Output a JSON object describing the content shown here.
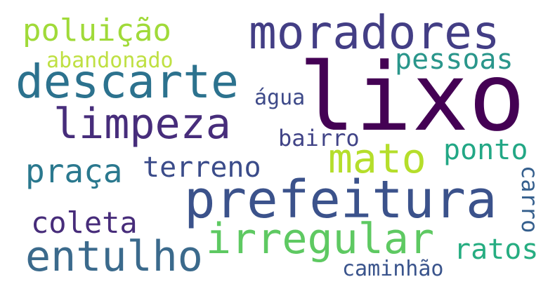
{
  "words": [
    {
      "id": "lixo",
      "text": "lixo",
      "color": "#440154"
    },
    {
      "id": "moradores",
      "text": "moradores",
      "color": "#433e85"
    },
    {
      "id": "descarte",
      "text": "descarte",
      "color": "#2c728e"
    },
    {
      "id": "limpeza",
      "text": "limpeza",
      "color": "#472d7b"
    },
    {
      "id": "prefeitura",
      "text": "prefeitura",
      "color": "#3b528b"
    },
    {
      "id": "poluicao",
      "text": "poluição",
      "color": "#a0da39"
    },
    {
      "id": "mato",
      "text": "mato",
      "color": "#b5de2b"
    },
    {
      "id": "irregular",
      "text": "irregular",
      "color": "#5ec962"
    },
    {
      "id": "entulho",
      "text": "entulho",
      "color": "#3b6a8c"
    },
    {
      "id": "praca",
      "text": "praça",
      "color": "#2a788e"
    },
    {
      "id": "terreno",
      "text": "terreno",
      "color": "#3b4c8a"
    },
    {
      "id": "pessoas",
      "text": "pessoas",
      "color": "#2a968b"
    },
    {
      "id": "abandonado",
      "text": "abandonado",
      "color": "#bfe043"
    },
    {
      "id": "coleta",
      "text": "coleta",
      "color": "#472c7a"
    },
    {
      "id": "ponto",
      "text": "ponto",
      "color": "#22a785"
    },
    {
      "id": "ratos",
      "text": "ratos",
      "color": "#26ad81"
    },
    {
      "id": "agua",
      "text": "água",
      "color": "#3e4a89"
    },
    {
      "id": "bairro",
      "text": "bairro",
      "color": "#414487"
    },
    {
      "id": "carro",
      "text": "carro",
      "color": "#355f8d"
    },
    {
      "id": "caminhao",
      "text": "caminhão",
      "color": "#3a548c"
    }
  ]
}
